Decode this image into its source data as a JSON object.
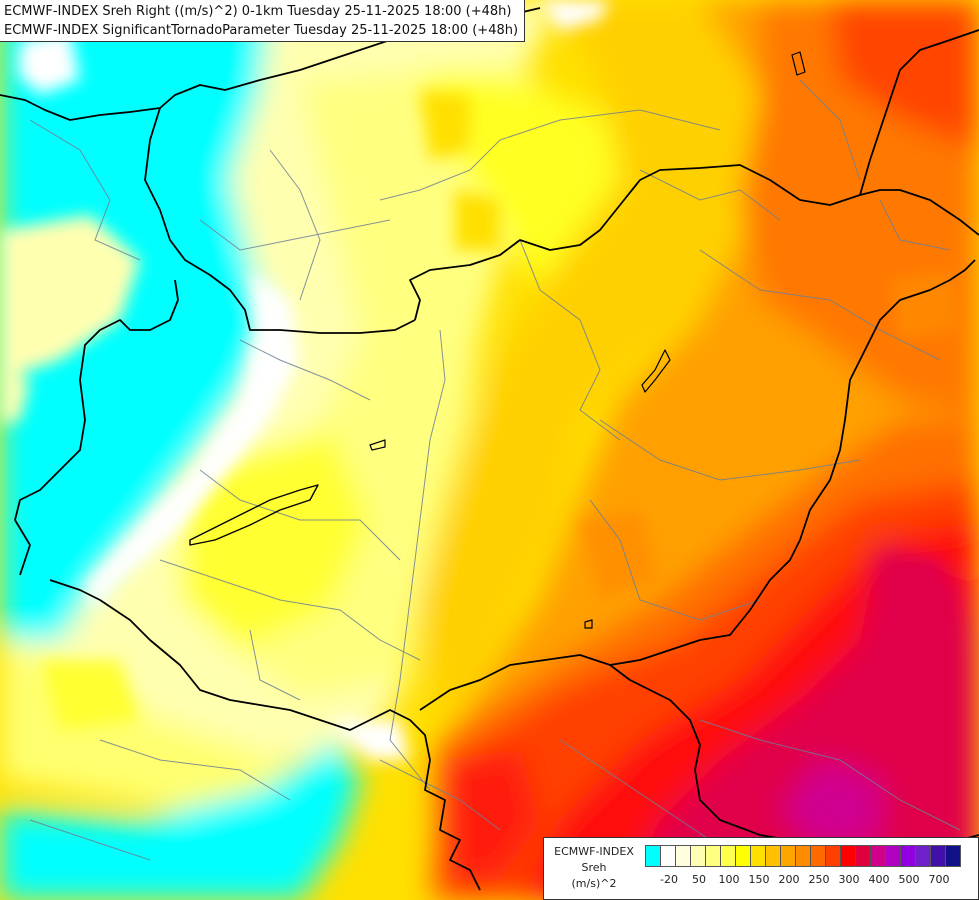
{
  "title": {
    "line1": "ECMWF-INDEX Sreh Right ((m/s)^2) 0-1km Tuesday 25-11-2025 18:00 (+48h)",
    "line2": "ECMWF-INDEX SignificantTornadoParameter Tuesday 25-11-2025 18:00 (+48h)"
  },
  "legend": {
    "model": "ECMWF-INDEX",
    "parameter": "Sreh",
    "unit": "(m/s)^2",
    "colors": [
      "#00ffff",
      "#ffffff",
      "#ffffe0",
      "#ffffb3",
      "#ffff80",
      "#ffff4d",
      "#ffff00",
      "#ffe000",
      "#ffc000",
      "#ffa500",
      "#ff8c00",
      "#ff6a00",
      "#ff4000",
      "#ff0000",
      "#e00040",
      "#d0008a",
      "#b000c0",
      "#9000e0",
      "#7020c8",
      "#4010a8",
      "#101088"
    ],
    "ticks": [
      "-20",
      "50",
      "100",
      "150",
      "200",
      "250",
      "300",
      "400",
      "500",
      "700"
    ]
  },
  "map_colors": {
    "cyan": "#00ffff",
    "white": "#ffffff",
    "pale_yellow": "#ffffb0",
    "light_yellow": "#ffff80",
    "yellow": "#ffff00",
    "gold": "#ffd000",
    "orange": "#ffa000",
    "dark_orange": "#ff7000",
    "red_orange": "#ff4000",
    "red": "#ff1010",
    "crimson": "#e0004a",
    "magenta": "#d00090"
  }
}
